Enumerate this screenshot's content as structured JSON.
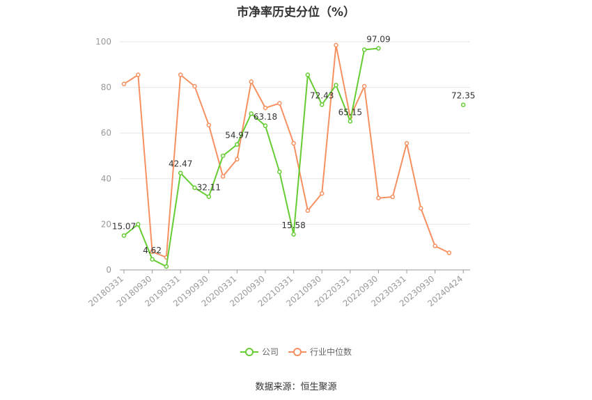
{
  "title": "市净率历史分位（%）",
  "source": "数据来源：恒生聚源",
  "colors": {
    "company": "#66cc33",
    "industry": "#f79060",
    "grid": "#e6e6e6",
    "axis": "#999999",
    "label": "#333333",
    "tick": "#999999"
  },
  "chart_data": {
    "type": "line",
    "title": "市净率历史分位（%）",
    "xlabel": "",
    "ylabel": "",
    "ylim": [
      0,
      100
    ],
    "yticks": [
      0,
      20,
      40,
      60,
      80,
      100
    ],
    "grid": true,
    "legend_position": "bottom",
    "x_tick_labels": [
      "20180331",
      "20180930",
      "20190331",
      "20190930",
      "20200331",
      "20200930",
      "20210331",
      "20210930",
      "20220331",
      "20220930",
      "20230331",
      "20230930",
      "20240424"
    ],
    "x": [
      "20180331",
      "20180630",
      "20180930",
      "20181231",
      "20190331",
      "20190630",
      "20190930",
      "20191231",
      "20200331",
      "20200630",
      "20200930",
      "20201231",
      "20210331",
      "20210630",
      "20210930",
      "20211231",
      "20220331",
      "20220630",
      "20220930",
      "20221231",
      "20230331",
      "20230630",
      "20230930",
      "20231231",
      "20240424"
    ],
    "series": [
      {
        "name": "公司",
        "color": "#66cc33",
        "values": [
          15.07,
          20,
          4.62,
          1.5,
          42.47,
          36,
          32.11,
          50,
          54.97,
          68.5,
          63.18,
          43,
          15.58,
          85.5,
          72.43,
          81,
          65.15,
          96.5,
          97.09,
          null,
          null,
          null,
          null,
          null,
          72.35
        ],
        "labels": {
          "0": "15.07",
          "2": "4.62",
          "4": "42.47",
          "6": "32.11",
          "8": "54.97",
          "10": "63.18",
          "12": "15.58",
          "14": "72.43",
          "16": "65.15",
          "18": "97.09",
          "24": "72.35"
        }
      },
      {
        "name": "行业中位数",
        "color": "#f79060",
        "values": [
          81.5,
          85.5,
          8,
          5.5,
          85.5,
          80.5,
          63.5,
          41,
          48.5,
          82.5,
          71,
          73,
          55.5,
          26,
          33.5,
          98.5,
          67,
          80.5,
          31.5,
          32,
          55.5,
          27,
          10.5,
          7.5,
          null
        ]
      }
    ]
  }
}
